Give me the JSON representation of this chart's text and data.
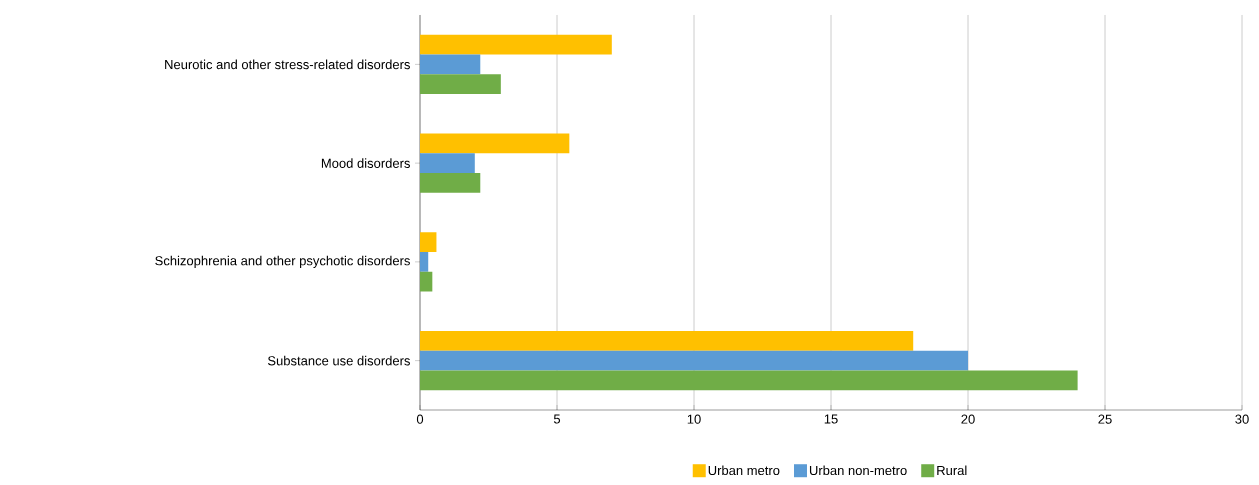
{
  "chart_data": {
    "type": "bar",
    "orientation": "horizontal",
    "categories": [
      "Neurotic and other stress-related disorders",
      "Mood disorders",
      "Schizophrenia and other psychotic disorders",
      "Substance use disorders"
    ],
    "series": [
      {
        "name": "Urban metro",
        "color": "#ffc000",
        "values": [
          7.0,
          5.45,
          0.6,
          18.0
        ]
      },
      {
        "name": "Urban non-metro",
        "color": "#5b9bd5",
        "values": [
          2.2,
          2.0,
          0.3,
          20.0
        ]
      },
      {
        "name": "Rural",
        "color": "#70ad47",
        "values": [
          2.95,
          2.2,
          0.45,
          24.0
        ]
      }
    ],
    "xlim": [
      0,
      30
    ],
    "xticks": [
      0,
      5,
      10,
      15,
      20,
      25,
      30
    ],
    "grid": "x",
    "legend": "bottom"
  }
}
